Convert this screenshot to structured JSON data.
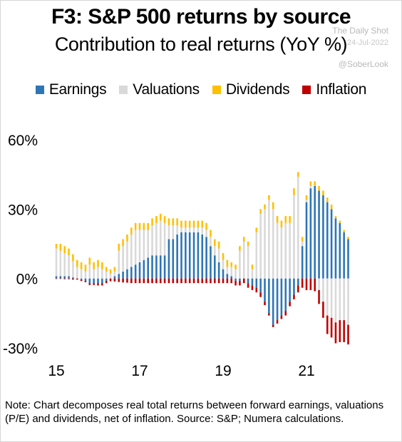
{
  "header": {
    "title": "F3: S&P 500 returns by source",
    "subtitle": "Contribution to real returns (YoY %)"
  },
  "watermark": {
    "line1": "The Daily Shot",
    "line2": "24-Jul-2022",
    "line3": "@SoberLook"
  },
  "footer": {
    "note": "Note: Chart decomposes real total returns between forward earnings, valuations (P/E) and dividends, net of inflation. Source: S&P; Numera calculations."
  },
  "colors": {
    "earnings": "#2e75b6",
    "valuations": "#d9d9d9",
    "dividends": "#ffc000",
    "inflation": "#c00000"
  },
  "chart_data": {
    "type": "bar",
    "stacked": true,
    "ylim": [
      -30,
      60
    ],
    "y_ticks": [
      60,
      30,
      0,
      -30
    ],
    "y_tick_labels": [
      "60%",
      "30%",
      "0%",
      "-30%"
    ],
    "x_ticks": [
      2015,
      2017,
      2019,
      2021
    ],
    "x_tick_labels": [
      "15",
      "17",
      "19",
      "21"
    ],
    "legend_position": "top",
    "x_start": 2015.0,
    "x_step": 0.1,
    "series": [
      {
        "name": "Earnings",
        "values": [
          1,
          1,
          1,
          1,
          0.5,
          0,
          -0.5,
          -1,
          -2,
          -2,
          -2,
          -2,
          -1,
          0,
          1,
          2,
          3,
          4,
          5,
          6,
          7,
          8,
          9,
          10,
          10,
          10,
          10,
          17,
          17,
          19,
          20,
          20,
          20,
          20,
          20,
          19,
          18,
          14,
          10,
          7,
          4,
          2,
          1,
          -1,
          -1,
          0,
          -2,
          -3,
          -4,
          -6,
          -10,
          -15,
          -20,
          -18,
          -16,
          -14,
          -10,
          -7,
          -3,
          14,
          33,
          39,
          40,
          38,
          36,
          33,
          30,
          26,
          24,
          20,
          17
        ]
      },
      {
        "name": "Valuations",
        "values": [
          12,
          11,
          10,
          9,
          7,
          5,
          4,
          3,
          6,
          4,
          5,
          4,
          3,
          2,
          2,
          10,
          11,
          12,
          14,
          15,
          14,
          13,
          12,
          13,
          14,
          15,
          14,
          6,
          6,
          4,
          2,
          2,
          2,
          2,
          2,
          3,
          3,
          4,
          4,
          6,
          4,
          3,
          4,
          4,
          12,
          16,
          14,
          4,
          20,
          28,
          30,
          34,
          30,
          24,
          22,
          24,
          24,
          36,
          44,
          2,
          1,
          1,
          0,
          -5,
          -10,
          -16,
          -17,
          -19,
          -18,
          -18,
          -20
        ]
      },
      {
        "name": "Dividends",
        "values": [
          2,
          3,
          3,
          3,
          3,
          3,
          3,
          3,
          3,
          3,
          3,
          3,
          2,
          2,
          2,
          3,
          3,
          3,
          3,
          3,
          3,
          3,
          3,
          3,
          3,
          3,
          3,
          3,
          3,
          3,
          3,
          3,
          3,
          3,
          3,
          3,
          3,
          3,
          3,
          3,
          3,
          3,
          2,
          2,
          2,
          2,
          2,
          2,
          2,
          2,
          2,
          2,
          3,
          3,
          3,
          3,
          3,
          3,
          2,
          2,
          2,
          2,
          2,
          2,
          2,
          2,
          2,
          1,
          1,
          1,
          1
        ]
      },
      {
        "name": "Inflation",
        "values": [
          -0.2,
          -0.2,
          -0.3,
          -0.3,
          -0.5,
          -0.5,
          -0.6,
          -0.6,
          -0.8,
          -0.8,
          -1,
          -1,
          -1,
          -1.2,
          -1.3,
          -1.5,
          -1.7,
          -1.8,
          -2,
          -2,
          -2,
          -2,
          -2,
          -2,
          -2,
          -2,
          -2,
          -2,
          -2,
          -2,
          -2,
          -2,
          -2,
          -2,
          -2,
          -2,
          -2,
          -2,
          -2,
          -2,
          -2,
          -2,
          -2,
          -2,
          -2,
          -2,
          -2,
          -2,
          -2,
          -2,
          -1.5,
          -1,
          -1,
          -1.5,
          -1.5,
          -2,
          -2,
          -2,
          -3,
          -4,
          -5,
          -5,
          -5.5,
          -6,
          -7,
          -8,
          -8.5,
          -9,
          -9.5,
          -9.5,
          -8.5
        ]
      }
    ]
  }
}
